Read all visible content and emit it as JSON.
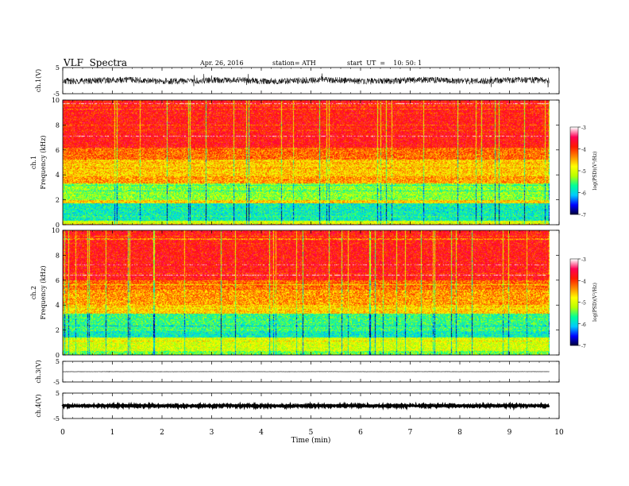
{
  "header": {
    "title": "VLF  Spectra",
    "date": "Apr. 26, 2016",
    "station": "station= ATH",
    "start_ut": "start  UT  =    10: 50: 1"
  },
  "chart_data": {
    "type": "heatmap",
    "x_axis": {
      "label": "Time  (min)",
      "range": [
        0,
        10
      ],
      "ticks": [
        "0",
        "1",
        "2",
        "3",
        "4",
        "5",
        "6",
        "7",
        "8",
        "9",
        "10"
      ]
    },
    "panels": [
      {
        "id": "ch1_waveform",
        "kind": "waveform",
        "ylabel": "ch.1(V)",
        "ylim": [
          -5,
          5
        ],
        "yticks": [
          "5",
          "-5"
        ],
        "trace_amplitude": 1.2,
        "trace_end_min": 9.8
      },
      {
        "id": "ch1_spectrum",
        "kind": "spectrogram",
        "ylabel_top": "ch.1",
        "ylabel": "Frequency  (kHz)",
        "ylim": [
          0,
          10
        ],
        "yticks": [
          "0",
          "2",
          "4",
          "6",
          "8",
          "10"
        ],
        "data_end_min": 9.8,
        "bands_khz_logpsd": [
          {
            "from": 0.0,
            "to": 0.3,
            "level": -5.0
          },
          {
            "from": 0.3,
            "to": 1.7,
            "level": -5.8
          },
          {
            "from": 1.7,
            "to": 2.0,
            "level": -4.6
          },
          {
            "from": 2.0,
            "to": 3.3,
            "level": -5.3
          },
          {
            "from": 3.3,
            "to": 3.9,
            "level": -4.4
          },
          {
            "from": 3.9,
            "to": 5.2,
            "level": -4.6
          },
          {
            "from": 5.2,
            "to": 6.2,
            "level": -4.2
          },
          {
            "from": 6.2,
            "to": 10.0,
            "level": -3.8
          }
        ]
      },
      {
        "id": "ch2_spectrum",
        "kind": "spectrogram",
        "ylabel_top": "ch.2",
        "ylabel": "Frequency  (kHz)",
        "ylim": [
          0,
          10
        ],
        "yticks": [
          "0",
          "2",
          "4",
          "6",
          "8",
          "10"
        ],
        "data_end_min": 9.8,
        "bands_khz_logpsd": [
          {
            "from": 0.0,
            "to": 0.3,
            "level": -5.4
          },
          {
            "from": 0.3,
            "to": 1.4,
            "level": -5.0
          },
          {
            "from": 1.4,
            "to": 1.9,
            "level": -5.8
          },
          {
            "from": 1.9,
            "to": 3.3,
            "level": -5.6
          },
          {
            "from": 3.3,
            "to": 4.0,
            "level": -4.6
          },
          {
            "from": 4.0,
            "to": 5.2,
            "level": -4.4
          },
          {
            "from": 5.2,
            "to": 6.0,
            "level": -4.2
          },
          {
            "from": 6.0,
            "to": 10.0,
            "level": -3.8
          }
        ]
      },
      {
        "id": "ch3_waveform",
        "kind": "waveform",
        "ylabel": "ch.3(V)",
        "ylim": [
          -5,
          5
        ],
        "yticks": [
          "5",
          "-5"
        ],
        "trace_amplitude": 0.05,
        "trace_end_min": 9.8
      },
      {
        "id": "ch4_waveform",
        "kind": "waveform",
        "ylabel": "ch.4(V)",
        "ylim": [
          -5,
          5
        ],
        "yticks": [
          "5",
          "-5"
        ],
        "trace_amplitude": 0.25,
        "trace_end_min": 9.8
      }
    ],
    "colorbar": {
      "label": "log(PSD)(V²/Hz)",
      "range": [
        -7,
        -3
      ],
      "ticks": [
        "-3",
        "-4",
        "-5",
        "-6",
        "-7"
      ],
      "colors": [
        "#000033",
        "#0000ff",
        "#00c8ff",
        "#00ff9a",
        "#b8ff00",
        "#ffff00",
        "#ff8800",
        "#ff1a00",
        "#ff0055",
        "#ffffff"
      ]
    }
  }
}
